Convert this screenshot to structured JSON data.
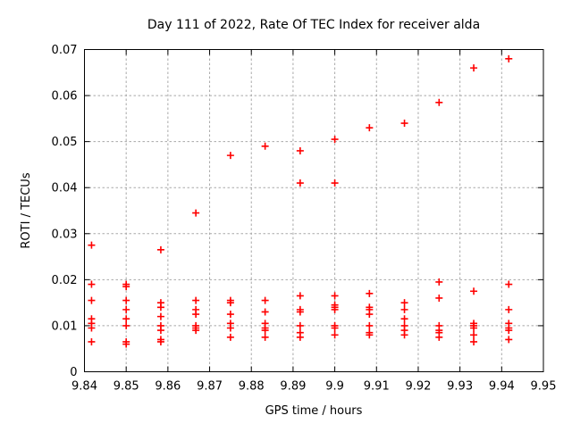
{
  "page": {
    "background_color": "#ffffff",
    "text_color": "#000000"
  },
  "chart_data": {
    "type": "scatter",
    "title": "Day 111 of 2022, Rate Of TEC Index for receiver alda",
    "xlabel": "GPS time / hours",
    "ylabel": "ROTI / TECUs",
    "xlim": [
      9.84,
      9.95
    ],
    "ylim": [
      0,
      0.07
    ],
    "grid": true,
    "legend": "none",
    "marker": "plus",
    "marker_color": "#ff0000",
    "grid_color": "#a8a8a8",
    "xticks": [
      {
        "value": 9.84,
        "label": "9.84"
      },
      {
        "value": 9.85,
        "label": "9.85"
      },
      {
        "value": 9.86,
        "label": "9.86"
      },
      {
        "value": 9.87,
        "label": "9.87"
      },
      {
        "value": 9.88,
        "label": "9.88"
      },
      {
        "value": 9.89,
        "label": "9.89"
      },
      {
        "value": 9.9,
        "label": "9.9"
      },
      {
        "value": 9.91,
        "label": "9.91"
      },
      {
        "value": 9.92,
        "label": "9.92"
      },
      {
        "value": 9.93,
        "label": "9.93"
      },
      {
        "value": 9.94,
        "label": "9.94"
      },
      {
        "value": 9.95,
        "label": "9.95"
      }
    ],
    "yticks": [
      {
        "value": 0,
        "label": "0"
      },
      {
        "value": 0.01,
        "label": "0.01"
      },
      {
        "value": 0.02,
        "label": "0.02"
      },
      {
        "value": 0.03,
        "label": "0.03"
      },
      {
        "value": 0.04,
        "label": "0.04"
      },
      {
        "value": 0.05,
        "label": "0.05"
      },
      {
        "value": 0.06,
        "label": "0.06"
      },
      {
        "value": 0.07,
        "label": "0.07"
      }
    ],
    "series": [
      {
        "name": "ROTI",
        "points": [
          [
            9.8417,
            0.0275
          ],
          [
            9.8417,
            0.019
          ],
          [
            9.8417,
            0.0155
          ],
          [
            9.8417,
            0.0115
          ],
          [
            9.8417,
            0.0105
          ],
          [
            9.8417,
            0.0095
          ],
          [
            9.8417,
            0.0065
          ],
          [
            9.85,
            0.019
          ],
          [
            9.85,
            0.0185
          ],
          [
            9.85,
            0.0155
          ],
          [
            9.85,
            0.0135
          ],
          [
            9.85,
            0.0115
          ],
          [
            9.85,
            0.01
          ],
          [
            9.85,
            0.0065
          ],
          [
            9.85,
            0.006
          ],
          [
            9.8583,
            0.0265
          ],
          [
            9.8583,
            0.015
          ],
          [
            9.8583,
            0.014
          ],
          [
            9.8583,
            0.012
          ],
          [
            9.8583,
            0.01
          ],
          [
            9.8583,
            0.009
          ],
          [
            9.8583,
            0.007
          ],
          [
            9.8583,
            0.0065
          ],
          [
            9.8667,
            0.0345
          ],
          [
            9.8667,
            0.0155
          ],
          [
            9.8667,
            0.0135
          ],
          [
            9.8667,
            0.0125
          ],
          [
            9.8667,
            0.01
          ],
          [
            9.8667,
            0.0095
          ],
          [
            9.8667,
            0.009
          ],
          [
            9.875,
            0.047
          ],
          [
            9.875,
            0.0155
          ],
          [
            9.875,
            0.015
          ],
          [
            9.875,
            0.0125
          ],
          [
            9.875,
            0.0105
          ],
          [
            9.875,
            0.0095
          ],
          [
            9.875,
            0.0075
          ],
          [
            9.8833,
            0.049
          ],
          [
            9.8833,
            0.0155
          ],
          [
            9.8833,
            0.013
          ],
          [
            9.8833,
            0.0105
          ],
          [
            9.8833,
            0.0095
          ],
          [
            9.8833,
            0.009
          ],
          [
            9.8833,
            0.0075
          ],
          [
            9.8917,
            0.048
          ],
          [
            9.8917,
            0.041
          ],
          [
            9.8917,
            0.0165
          ],
          [
            9.8917,
            0.0135
          ],
          [
            9.8917,
            0.013
          ],
          [
            9.8917,
            0.01
          ],
          [
            9.8917,
            0.0085
          ],
          [
            9.8917,
            0.0075
          ],
          [
            9.9,
            0.0505
          ],
          [
            9.9,
            0.041
          ],
          [
            9.9,
            0.0165
          ],
          [
            9.9,
            0.0145
          ],
          [
            9.9,
            0.014
          ],
          [
            9.9,
            0.0135
          ],
          [
            9.9,
            0.01
          ],
          [
            9.9,
            0.0095
          ],
          [
            9.9,
            0.008
          ],
          [
            9.9083,
            0.053
          ],
          [
            9.9083,
            0.017
          ],
          [
            9.9083,
            0.014
          ],
          [
            9.9083,
            0.0135
          ],
          [
            9.9083,
            0.0125
          ],
          [
            9.9083,
            0.01
          ],
          [
            9.9083,
            0.0085
          ],
          [
            9.9083,
            0.008
          ],
          [
            9.9167,
            0.054
          ],
          [
            9.9167,
            0.015
          ],
          [
            9.9167,
            0.0135
          ],
          [
            9.9167,
            0.0115
          ],
          [
            9.9167,
            0.01
          ],
          [
            9.9167,
            0.009
          ],
          [
            9.9167,
            0.008
          ],
          [
            9.925,
            0.0585
          ],
          [
            9.925,
            0.0195
          ],
          [
            9.925,
            0.016
          ],
          [
            9.925,
            0.01
          ],
          [
            9.925,
            0.009
          ],
          [
            9.925,
            0.0085
          ],
          [
            9.925,
            0.0075
          ],
          [
            9.9333,
            0.066
          ],
          [
            9.9333,
            0.0175
          ],
          [
            9.9333,
            0.0105
          ],
          [
            9.9333,
            0.01
          ],
          [
            9.9333,
            0.0095
          ],
          [
            9.9333,
            0.008
          ],
          [
            9.9333,
            0.0065
          ],
          [
            9.9417,
            0.068
          ],
          [
            9.9417,
            0.019
          ],
          [
            9.9417,
            0.0135
          ],
          [
            9.9417,
            0.0105
          ],
          [
            9.9417,
            0.0095
          ],
          [
            9.9417,
            0.009
          ],
          [
            9.9417,
            0.007
          ]
        ]
      }
    ]
  }
}
